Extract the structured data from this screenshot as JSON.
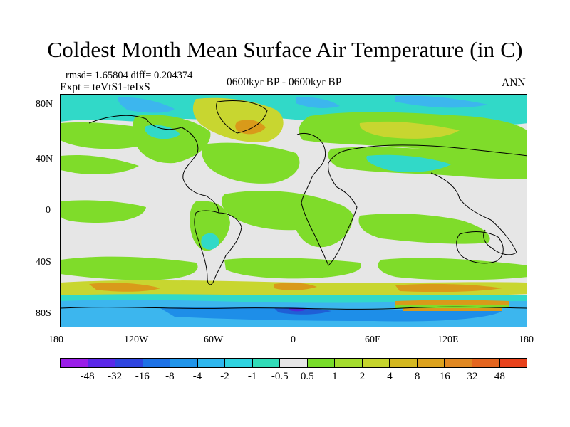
{
  "title": "Coldest Month Mean Surface Air Temperature (in C)",
  "header": {
    "stats": "rmsd= 1.65804 diff= 0.204374",
    "expt": "Expt = teVtS1-teIxS",
    "period": "0600kyr BP - 0600kyr BP",
    "season": "ANN"
  },
  "map": {
    "lat_labels": [
      "80N",
      "40N",
      "0",
      "40S",
      "80S"
    ],
    "lon_labels": [
      "180",
      "120W",
      "60W",
      "0",
      "60E",
      "120E",
      "180"
    ],
    "colors": {
      "neutral": "#e6e6e6",
      "green": "#7fdc2a",
      "lightgreen": "#a8e040",
      "yellowgreen": "#c8d630",
      "orange": "#d99a1a",
      "cyan": "#31d9c8",
      "lightblue": "#3cb6ee",
      "blue": "#1e8ee8",
      "darkblue": "#1f5fd6",
      "violet": "#4a2ad8",
      "coast": "#000000"
    }
  },
  "colorbar": {
    "colors": [
      "#9a1ee8",
      "#5a28e8",
      "#2f45e0",
      "#1e72e6",
      "#2195ea",
      "#2eb7ee",
      "#2fd3e0",
      "#31dcb8",
      "#e6e6e6",
      "#78dc2a",
      "#a4dc2e",
      "#c5d42c",
      "#d4b820",
      "#dca21e",
      "#e08822",
      "#e4651f",
      "#e8421c"
    ],
    "labels": [
      "-48",
      "-32",
      "-16",
      "-8",
      "-4",
      "-2",
      "-1",
      "-0.5",
      "0.5",
      "1",
      "2",
      "4",
      "8",
      "16",
      "32",
      "48"
    ]
  }
}
